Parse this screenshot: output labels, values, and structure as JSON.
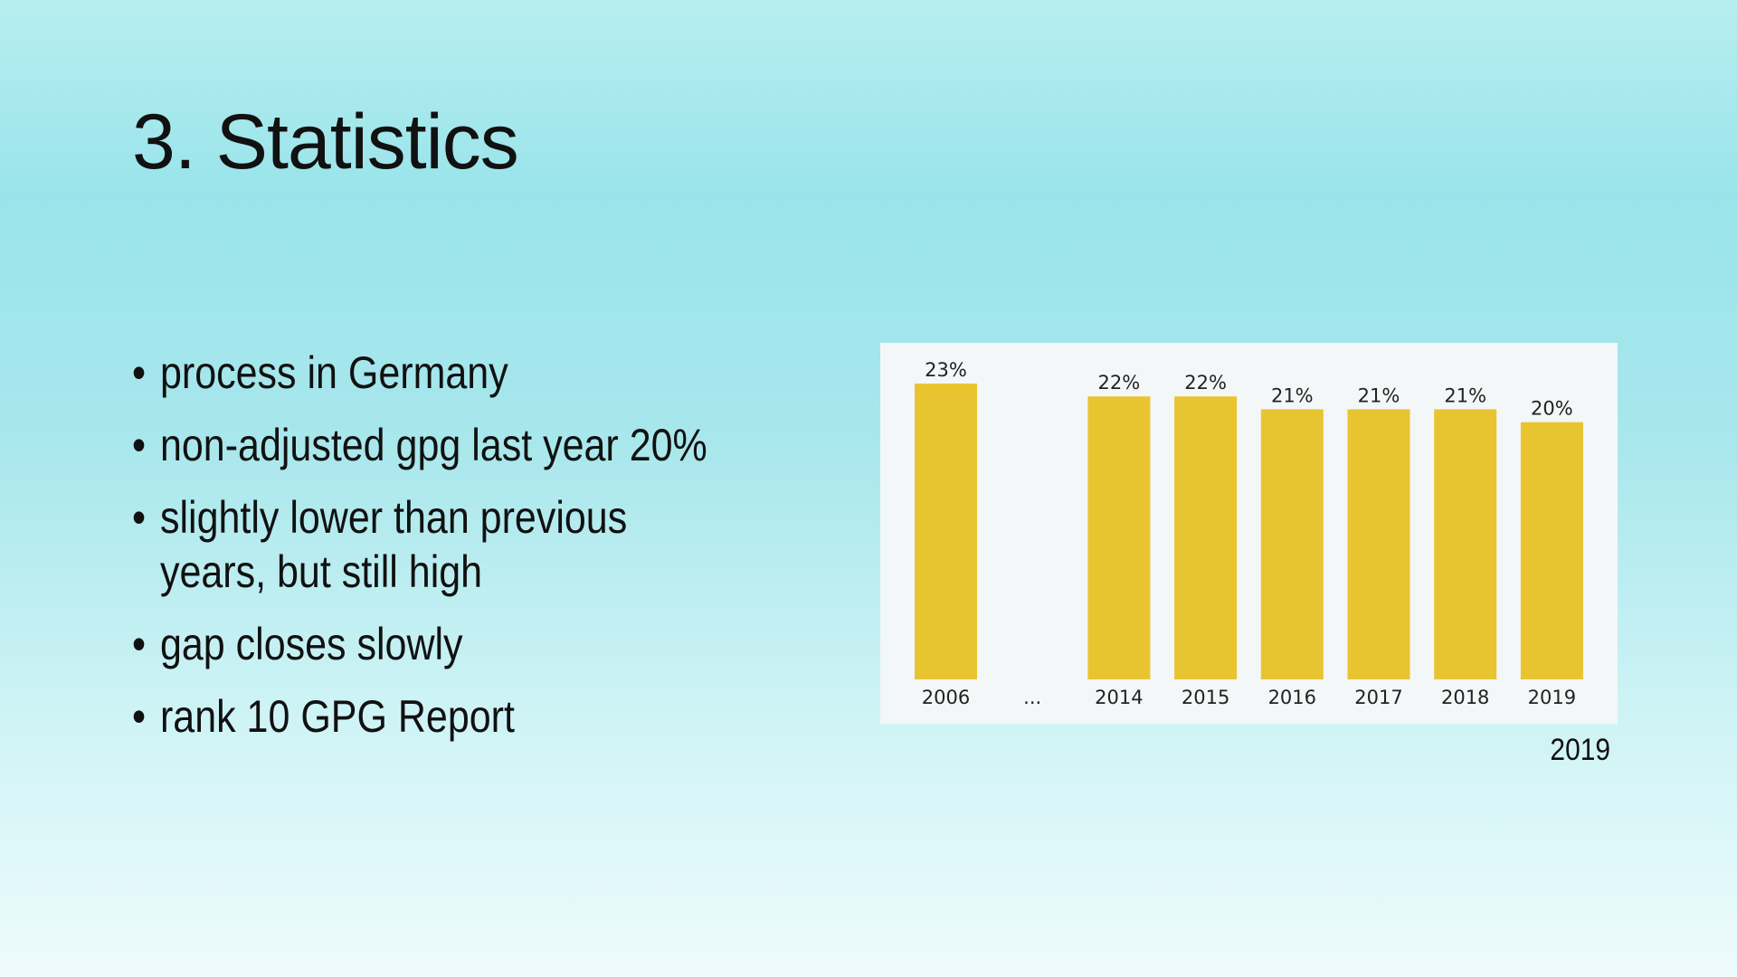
{
  "slide": {
    "title": "3. Statistics",
    "bullets": [
      "process in Germany",
      "non-adjusted gpg last year 20%",
      "slightly lower than previous years, but still high",
      "gap closes slowly",
      "rank 10 GPG Report"
    ],
    "chart_caption": "2019"
  },
  "colors": {
    "bar": "#e9c431",
    "panel": "#f3f7f8",
    "text": "#222222"
  },
  "chart_data": {
    "type": "bar",
    "categories": [
      "2006",
      "...",
      "2014",
      "2015",
      "2016",
      "2017",
      "2018",
      "2019"
    ],
    "values": [
      23,
      null,
      22,
      22,
      21,
      21,
      21,
      20
    ],
    "data_labels": [
      "23%",
      "",
      "22%",
      "22%",
      "21%",
      "21%",
      "21%",
      "20%"
    ],
    "title": "",
    "xlabel": "",
    "ylabel": "",
    "ylim": [
      0,
      23
    ],
    "grid": false,
    "legend": "none"
  }
}
